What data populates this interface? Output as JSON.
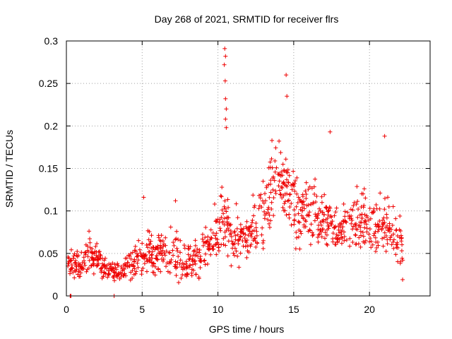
{
  "chart_data": {
    "type": "scatter",
    "title": "Day 268 of 2021, SRMTID for receiver flrs",
    "xlabel": "GPS time / hours",
    "ylabel": "SRMTID / TECUs",
    "xlim": [
      0,
      24
    ],
    "ylim": [
      0,
      0.3
    ],
    "x_ticks": [
      0,
      5,
      10,
      15,
      20
    ],
    "x_tick_labels": [
      "0",
      "5",
      "10",
      "15",
      "20"
    ],
    "y_ticks": [
      0,
      0.05,
      0.1,
      0.15,
      0.2,
      0.25,
      0.3
    ],
    "y_tick_labels": [
      "0",
      "0.05",
      "0.1",
      "0.15",
      "0.2",
      "0.25",
      "0.3"
    ],
    "grid": true,
    "marker": "+",
    "series_color": "#ee0000",
    "envelope": {
      "x": [
        0.1,
        0.5,
        1.0,
        1.5,
        2.0,
        2.5,
        3.0,
        3.5,
        4.0,
        4.5,
        5.0,
        5.5,
        6.0,
        6.5,
        7.0,
        7.5,
        8.0,
        8.5,
        9.0,
        9.5,
        10.0,
        10.3,
        10.6,
        11.0,
        11.5,
        12.0,
        12.5,
        13.0,
        13.5,
        14.0,
        14.5,
        15.0,
        15.5,
        16.0,
        16.5,
        17.0,
        17.5,
        18.0,
        18.5,
        19.0,
        19.5,
        20.0,
        20.5,
        21.0,
        21.5,
        22.0,
        22.2
      ],
      "median": [
        0.035,
        0.035,
        0.04,
        0.05,
        0.04,
        0.032,
        0.03,
        0.03,
        0.035,
        0.04,
        0.045,
        0.05,
        0.05,
        0.055,
        0.05,
        0.045,
        0.04,
        0.045,
        0.05,
        0.06,
        0.065,
        0.09,
        0.08,
        0.07,
        0.065,
        0.07,
        0.08,
        0.1,
        0.13,
        0.14,
        0.13,
        0.11,
        0.1,
        0.1,
        0.095,
        0.09,
        0.085,
        0.08,
        0.085,
        0.08,
        0.09,
        0.085,
        0.08,
        0.085,
        0.075,
        0.065,
        0.05
      ],
      "spread": [
        0.02,
        0.02,
        0.025,
        0.03,
        0.02,
        0.015,
        0.015,
        0.015,
        0.018,
        0.02,
        0.025,
        0.028,
        0.028,
        0.028,
        0.03,
        0.03,
        0.025,
        0.025,
        0.025,
        0.03,
        0.035,
        0.06,
        0.04,
        0.03,
        0.03,
        0.03,
        0.035,
        0.045,
        0.05,
        0.05,
        0.045,
        0.045,
        0.04,
        0.04,
        0.04,
        0.035,
        0.03,
        0.03,
        0.03,
        0.035,
        0.04,
        0.035,
        0.035,
        0.04,
        0.035,
        0.03,
        0.025
      ]
    },
    "outliers": [
      {
        "x": 10.45,
        "y": 0.291
      },
      {
        "x": 10.5,
        "y": 0.282
      },
      {
        "x": 10.42,
        "y": 0.272
      },
      {
        "x": 10.48,
        "y": 0.253
      },
      {
        "x": 10.5,
        "y": 0.232
      },
      {
        "x": 10.55,
        "y": 0.22
      },
      {
        "x": 10.5,
        "y": 0.208
      },
      {
        "x": 10.55,
        "y": 0.198
      },
      {
        "x": 14.5,
        "y": 0.26
      },
      {
        "x": 14.55,
        "y": 0.235
      },
      {
        "x": 17.4,
        "y": 0.193
      },
      {
        "x": 21.0,
        "y": 0.188
      },
      {
        "x": 7.2,
        "y": 0.112
      },
      {
        "x": 5.1,
        "y": 0.116
      },
      {
        "x": 0.25,
        "y": 0.0
      },
      {
        "x": 0.3,
        "y": 0.0
      },
      {
        "x": 3.15,
        "y": 0.0
      }
    ]
  }
}
